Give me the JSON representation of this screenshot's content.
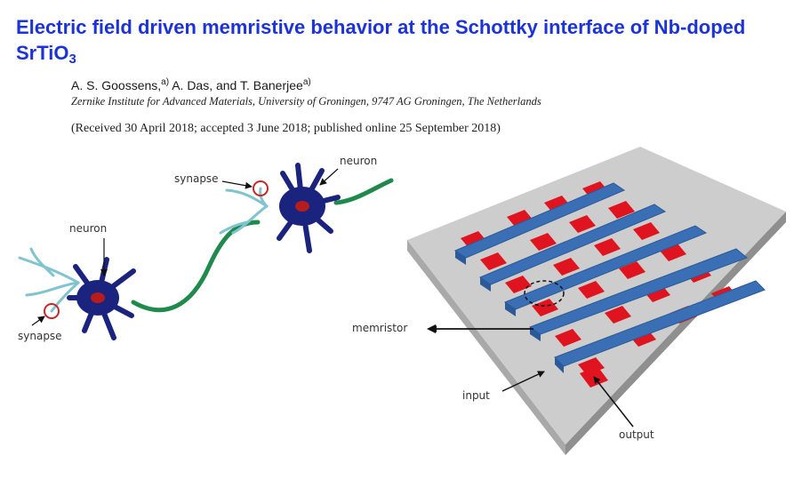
{
  "paper": {
    "title_main": "Electric field driven memristive behavior at the Schottky interface of Nb-doped SrTiO",
    "title_sub": "3",
    "author_1": "A. S. Goossens,",
    "author_1_mark": "a)",
    "author_rest": " A. Das, and T. Banerjee",
    "author_rest_mark": "a)",
    "affiliation": "Zernike Institute for Advanced Materials, University of Groningen, 9747 AG Groningen, The Netherlands",
    "received": "(Received 30 April 2018; accepted 3 June 2018; published online 25 September 2018)"
  },
  "figure": {
    "neuron_right_label": "neuron",
    "synapse_top_label": "synapse",
    "neuron_left_label": "neuron",
    "synapse_bottom_label": "synapse",
    "memristor_label": "memristor",
    "input_label": "input",
    "output_label": "output",
    "colors": {
      "title": "#1c33d6",
      "neuron_body": "#1a237e",
      "axon": "#1f8a4c",
      "dendrite": "#7fc4cf",
      "synapse_circle": "#c62828",
      "electrode_top": "#3a6fb5",
      "electrode_bottom": "#e0141e",
      "substrate": "#c8c8c8"
    }
  }
}
